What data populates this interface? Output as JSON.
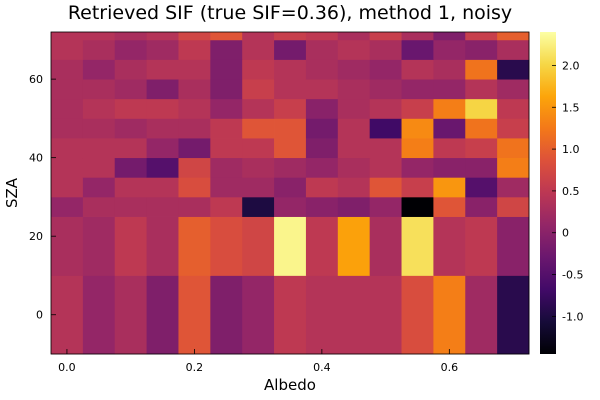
{
  "chart_data": {
    "type": "heatmap",
    "title": "Retrieved SIF (true SIF=0.36), method 1, noisy",
    "xlabel": "Albedo",
    "ylabel": "SZA",
    "colormap": "inferno",
    "x_ticks": [
      0.0,
      0.2,
      0.4,
      0.6
    ],
    "x_tick_labels": [
      "0.0",
      "0.2",
      "0.4",
      "0.6"
    ],
    "y_ticks": [
      0,
      20,
      40,
      60
    ],
    "y_tick_labels": [
      "0",
      "20",
      "40",
      "60"
    ],
    "colorbar_ticks": [
      -1.0,
      -0.5,
      0,
      0.5,
      1.0,
      1.5,
      2.0
    ],
    "colorbar_tick_labels": [
      "-1.0",
      "-0.5",
      "0",
      "0.5",
      "1.0",
      "1.5",
      "2.0"
    ],
    "zlim": [
      -1.45,
      2.4
    ],
    "x_edges": [
      -0.025,
      0.025,
      0.075,
      0.125,
      0.175,
      0.225,
      0.275,
      0.325,
      0.375,
      0.425,
      0.475,
      0.525,
      0.575,
      0.625,
      0.675,
      0.725
    ],
    "y_edges": [
      -10,
      10,
      25,
      30,
      35,
      40,
      45,
      50,
      55,
      60,
      65,
      70,
      72
    ],
    "x": [
      0.0,
      0.05,
      0.1,
      0.15,
      0.2,
      0.25,
      0.3,
      0.35,
      0.4,
      0.45,
      0.5,
      0.55,
      0.6,
      0.65,
      0.7
    ],
    "y": [
      0,
      17.5,
      27.5,
      32.5,
      37.5,
      42.5,
      47.5,
      52.5,
      57.5,
      62.5,
      67.5,
      71
    ],
    "z": [
      [
        0.4,
        0.1,
        0.3,
        -0.1,
        0.9,
        -0.1,
        0.1,
        0.5,
        0.4,
        0.4,
        0.4,
        0.8,
        1.3,
        0.2,
        -0.9
      ],
      [
        0.3,
        0.2,
        0.5,
        0.3,
        1.0,
        0.8,
        0.7,
        2.3,
        0.5,
        1.6,
        0.3,
        2.1,
        0.4,
        0.5,
        0.0
      ],
      [
        0.1,
        0.3,
        0.3,
        0.3,
        0.3,
        0.5,
        -1.0,
        0.1,
        0.0,
        -0.1,
        0.1,
        -1.45,
        0.9,
        0.0,
        0.7
      ],
      [
        0.4,
        0.1,
        0.4,
        0.4,
        0.8,
        0.2,
        0.2,
        0.0,
        0.5,
        0.4,
        0.9,
        0.6,
        1.5,
        -0.5,
        0.2
      ],
      [
        0.4,
        0.4,
        -0.2,
        -0.5,
        0.7,
        0.2,
        0.3,
        0.2,
        0.1,
        0.3,
        0.4,
        0.1,
        0.0,
        0.0,
        1.3
      ],
      [
        0.4,
        0.4,
        0.4,
        0.1,
        -0.2,
        0.5,
        0.5,
        0.9,
        -0.1,
        0.4,
        0.4,
        1.3,
        0.5,
        0.6,
        1.2
      ],
      [
        0.3,
        0.3,
        0.2,
        0.3,
        0.3,
        0.5,
        0.9,
        0.9,
        -0.2,
        0.4,
        -0.7,
        1.4,
        -0.3,
        1.2,
        0.6
      ],
      [
        0.3,
        0.4,
        0.5,
        0.5,
        0.4,
        0.1,
        0.4,
        0.6,
        0.0,
        0.3,
        0.4,
        0.6,
        1.3,
        2.0,
        0.5
      ],
      [
        0.3,
        0.3,
        0.2,
        -0.1,
        0.3,
        -0.1,
        0.6,
        0.4,
        0.4,
        0.3,
        0.2,
        0.1,
        0.1,
        0.4,
        0.2
      ],
      [
        0.3,
        0.1,
        0.3,
        0.4,
        0.4,
        -0.1,
        0.5,
        0.4,
        0.3,
        0.2,
        0.1,
        0.4,
        0.3,
        1.2,
        -0.9
      ],
      [
        0.4,
        0.3,
        0.1,
        0.2,
        0.5,
        -0.1,
        0.4,
        -0.2,
        0.3,
        0.4,
        0.3,
        -0.3,
        0.1,
        0.0,
        0.3
      ],
      [
        0.4,
        0.4,
        0.3,
        0.4,
        0.7,
        0.9,
        0.4,
        0.6,
        0.5,
        0.3,
        0.6,
        0.3,
        -0.1,
        0.6,
        1.0
      ]
    ]
  }
}
